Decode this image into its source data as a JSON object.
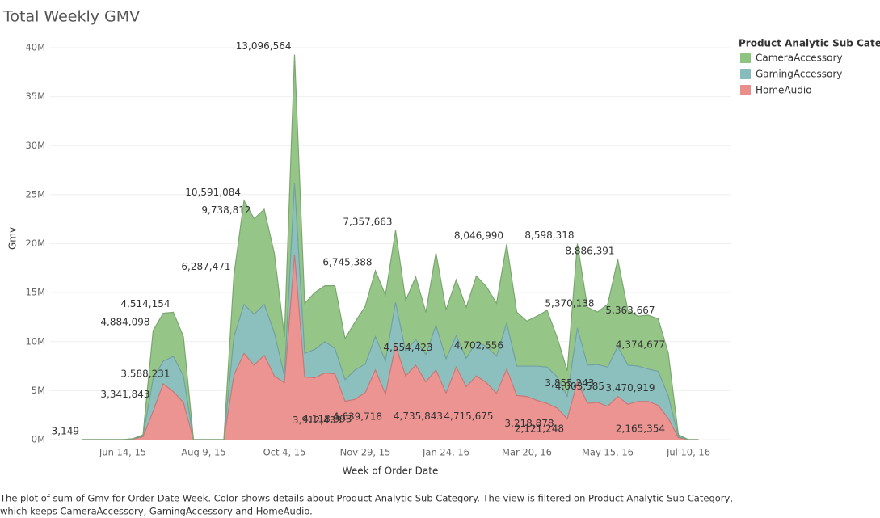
{
  "chart_data": {
    "type": "stacked-area",
    "title": "Total Weekly GMV",
    "x_label": "Week of Order Date",
    "y_label": "Gmv",
    "legend_title": "Product Analytic Sub Category",
    "caption": [
      "The plot of sum of Gmv for Order Date Week.  Color shows details about Product Analytic Sub Category. The view is filtered on Product Analytic Sub Category,",
      "which keeps CameraAccessory, GamingAccessory and HomeAudio."
    ],
    "categories": [
      null,
      null,
      null,
      null,
      "Jun 14, 15",
      null,
      null,
      null,
      null,
      null,
      null,
      null,
      "Aug 9, 15",
      null,
      null,
      null,
      null,
      null,
      null,
      null,
      "Oct 4, 15",
      null,
      null,
      null,
      null,
      null,
      null,
      null,
      "Nov 29, 15",
      null,
      null,
      null,
      null,
      null,
      null,
      null,
      "Jan 24, 16",
      null,
      null,
      null,
      null,
      null,
      null,
      null,
      "Mar 20, 16",
      null,
      null,
      null,
      null,
      null,
      null,
      null,
      "May 15, 16",
      null,
      null,
      null,
      null,
      null,
      null,
      null,
      "Jul 10, 16",
      null
    ],
    "ylim": [
      0,
      40000000
    ],
    "yticks": [
      {
        "value": 0,
        "label": "0M"
      },
      {
        "value": 5000000,
        "label": "5M"
      },
      {
        "value": 10000000,
        "label": "10M"
      },
      {
        "value": 15000000,
        "label": "15M"
      },
      {
        "value": 20000000,
        "label": "20M"
      },
      {
        "value": 25000000,
        "label": "25M"
      },
      {
        "value": 30000000,
        "label": "30M"
      },
      {
        "value": 35000000,
        "label": "35M"
      },
      {
        "value": 40000000,
        "label": "40M"
      }
    ],
    "grid": true,
    "series": [
      {
        "name": "CameraAccessory",
        "color": "#8fc382",
        "values": [
          3149,
          0,
          0,
          0,
          0,
          20000,
          100000,
          4884098,
          4900000,
          4514154,
          4000000,
          0,
          0,
          0,
          0,
          6287471,
          10591084,
          9738812,
          9700000,
          8100000,
          4000000,
          13096564,
          5100000,
          5800000,
          5700000,
          6400000,
          4200000,
          4900000,
          5900000,
          6745388,
          6700000,
          7357663,
          5200000,
          6400000,
          4300000,
          7400000,
          5000000,
          5700000,
          5200000,
          6700000,
          6100000,
          5400000,
          8046990,
          5500000,
          4600000,
          5100000,
          5800000,
          4000000,
          2600000,
          8598318,
          5900000,
          5370138,
          6400000,
          8886391,
          5600000,
          5100000,
          5500000,
          5363667,
          4374677,
          200000,
          0,
          0
        ],
        "value_labels": [
          "3,149",
          null,
          null,
          null,
          null,
          null,
          null,
          "4,884,098",
          null,
          "4,514,154",
          null,
          null,
          null,
          null,
          null,
          "6,287,471",
          "10,591,084",
          "9,738,812",
          null,
          null,
          null,
          "13,096,564",
          null,
          null,
          null,
          null,
          null,
          null,
          null,
          "6,745,388",
          null,
          "7,357,663",
          null,
          null,
          null,
          null,
          null,
          null,
          null,
          null,
          null,
          null,
          "8,046,990",
          null,
          null,
          null,
          null,
          null,
          null,
          "8,598,318",
          null,
          "5,370,138",
          null,
          "8,886,391",
          null,
          null,
          null,
          "5,363,667",
          "4,374,677",
          null,
          null,
          null
        ]
      },
      {
        "name": "GamingAccessory",
        "color": "#86bdbc",
        "values": [
          0,
          0,
          0,
          0,
          0,
          30000,
          100000,
          3341843,
          2300000,
          3588231,
          2700000,
          0,
          0,
          0,
          0,
          3900000,
          5000000,
          5200000,
          5200000,
          4400000,
          700000,
          7300000,
          2400000,
          2900000,
          3200000,
          2600000,
          2200000,
          3000000,
          2900000,
          3400000,
          3400000,
          4400000,
          2500000,
          2600000,
          2800000,
          4554423,
          3500000,
          3200000,
          2900000,
          3500000,
          3700000,
          3800000,
          4702556,
          3000000,
          3100000,
          3500000,
          3700000,
          3200000,
          2300000,
          5500000,
          3900000,
          3855243,
          4003585,
          5100000,
          4000000,
          3600000,
          3300000,
          3470919,
          2300000,
          100000,
          0,
          0
        ],
        "value_labels": [
          null,
          null,
          null,
          null,
          null,
          null,
          null,
          "3,341,843",
          null,
          "3,588,231",
          null,
          null,
          null,
          null,
          null,
          null,
          null,
          null,
          null,
          null,
          null,
          null,
          null,
          null,
          null,
          null,
          null,
          null,
          null,
          null,
          null,
          null,
          null,
          null,
          null,
          "4,554,423",
          null,
          null,
          null,
          null,
          null,
          null,
          "4,702,556",
          null,
          null,
          null,
          null,
          null,
          null,
          null,
          null,
          "3,855,243",
          "4,003,585",
          null,
          null,
          null,
          null,
          "3,470,919",
          null,
          null,
          null,
          null
        ]
      },
      {
        "name": "HomeAudio",
        "color": "#ea8e8c",
        "values": [
          0,
          0,
          0,
          0,
          0,
          50000,
          300000,
          2900000,
          5700000,
          4900000,
          3800000,
          0,
          0,
          0,
          0,
          6600000,
          8800000,
          7600000,
          8600000,
          6500000,
          5800000,
          18900000,
          6400000,
          6300000,
          6800000,
          6700000,
          3912433,
          4118993,
          4800000,
          7100000,
          4639718,
          9600000,
          6500000,
          7600000,
          5900000,
          7100000,
          4735843,
          7400000,
          5400000,
          6500000,
          5800000,
          4715675,
          7200000,
          4500000,
          4400000,
          4000000,
          3700000,
          3218878,
          2121248,
          5900000,
          3700000,
          3800000,
          3400000,
          4400000,
          3600000,
          3900000,
          3900000,
          3500000,
          2165354,
          200000,
          0,
          0
        ],
        "value_labels": [
          null,
          null,
          null,
          null,
          null,
          null,
          null,
          null,
          null,
          null,
          null,
          null,
          null,
          null,
          null,
          null,
          null,
          null,
          null,
          null,
          null,
          null,
          null,
          null,
          null,
          null,
          "3,912,433",
          "4,118,993",
          null,
          null,
          "4,639,718",
          null,
          null,
          null,
          null,
          null,
          "4,735,843",
          null,
          null,
          null,
          null,
          "4,715,675",
          null,
          null,
          null,
          null,
          null,
          "3,218,878",
          "2,121,248",
          null,
          null,
          null,
          null,
          null,
          null,
          null,
          null,
          null,
          "2,165,354",
          null,
          null,
          null
        ]
      }
    ]
  }
}
